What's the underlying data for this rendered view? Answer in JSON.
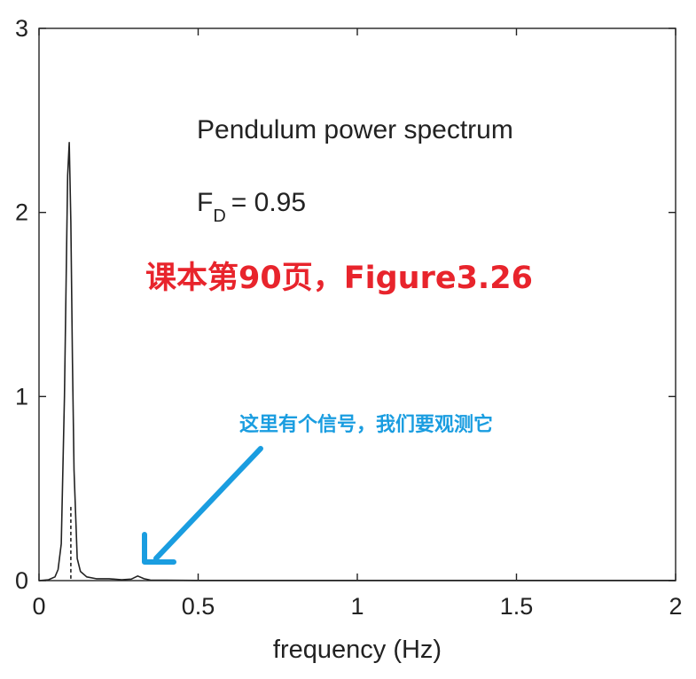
{
  "chart_data": {
    "type": "line",
    "title": "Pendulum power spectrum",
    "parameter": {
      "symbol": "F",
      "subscript": "D",
      "value": "= 0.95"
    },
    "xlabel": "frequency (Hz)",
    "ylabel": "",
    "xlim": [
      0,
      2
    ],
    "ylim": [
      0,
      3
    ],
    "x_ticks": [
      "0",
      "0.5",
      "1",
      "1.5",
      "2"
    ],
    "y_ticks": [
      "0",
      "1",
      "2",
      "3"
    ],
    "grid": false,
    "series": [
      {
        "x": [
          0.0,
          0.03,
          0.05,
          0.06,
          0.07,
          0.08,
          0.09,
          0.095,
          0.1,
          0.105,
          0.11,
          0.12,
          0.13,
          0.15,
          0.18,
          0.22,
          0.26,
          0.29,
          0.31,
          0.33,
          0.35,
          0.4,
          0.5,
          0.7,
          1.0,
          1.5,
          2.0
        ],
        "values": [
          0.0,
          0.005,
          0.02,
          0.06,
          0.2,
          1.0,
          2.2,
          2.38,
          1.95,
          1.2,
          0.6,
          0.12,
          0.05,
          0.02,
          0.01,
          0.01,
          0.005,
          0.008,
          0.025,
          0.01,
          0.003,
          0.002,
          0.001,
          0.001,
          0.001,
          0.001,
          0.001
        ]
      }
    ],
    "reference_line": {
      "x": 0.1,
      "y_top": 0.4,
      "style": "dashed"
    }
  },
  "annotations": {
    "red_note": "课本第90页，Figure3.26",
    "blue_note": "这里有个信号，我们要观测它",
    "arrow_color": "#1a9de0",
    "red_color": "#e8242c"
  }
}
